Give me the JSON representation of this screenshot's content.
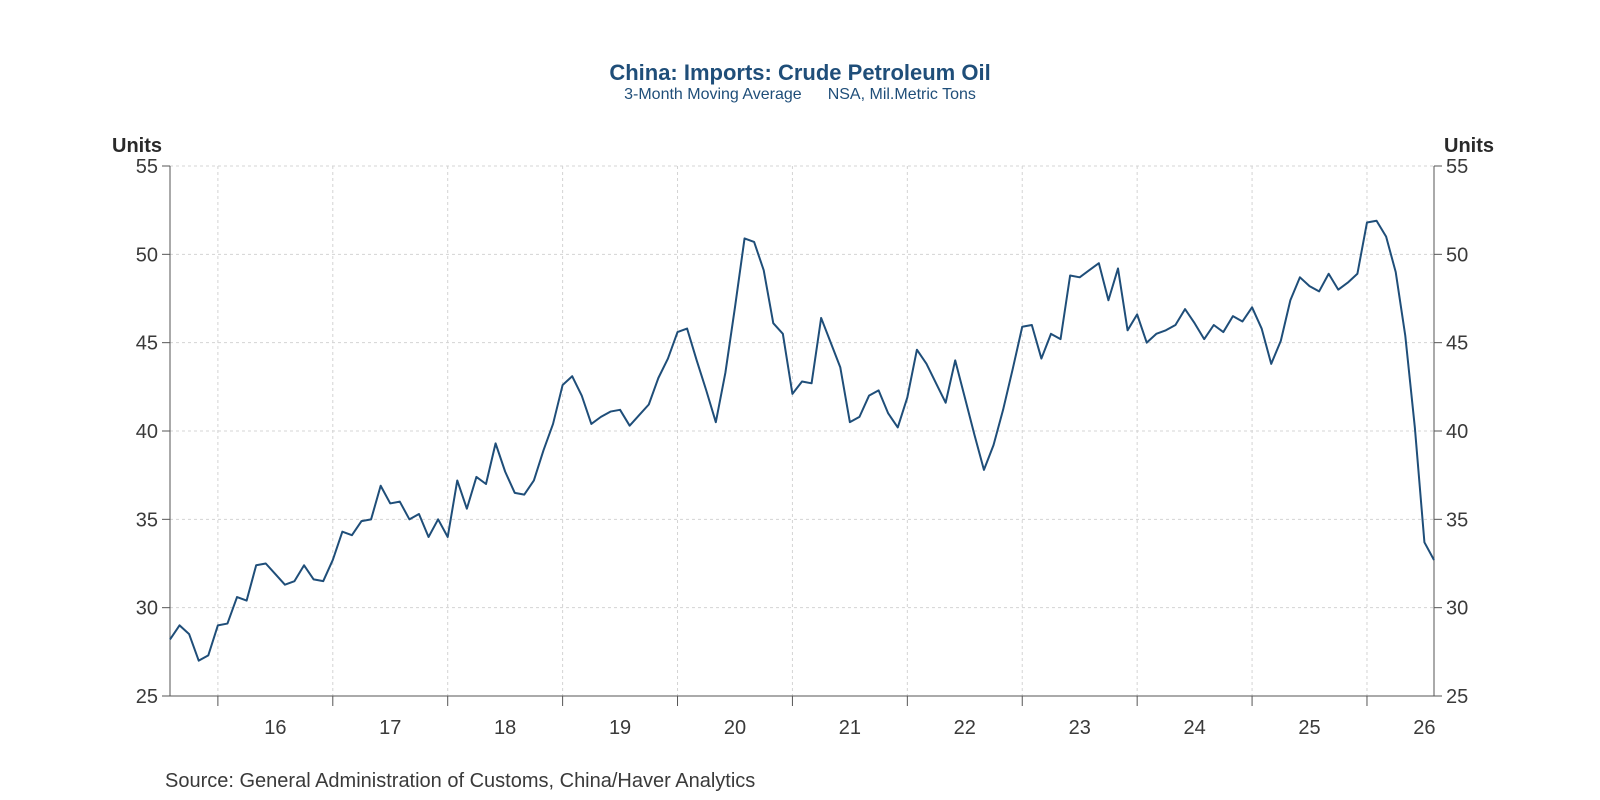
{
  "chart_data": {
    "type": "line",
    "title": "China: Imports: Crude Petroleum Oil",
    "subtitle": [
      "3-Month Moving Average",
      "NSA, Mil.Metric Tons"
    ],
    "ylabel_left": "Units",
    "ylabel_right": "Units",
    "ylim": [
      25,
      55
    ],
    "yticks": [
      25,
      30,
      35,
      40,
      45,
      50,
      55
    ],
    "x_tick_labels": [
      "16",
      "17",
      "18",
      "19",
      "20",
      "21",
      "22",
      "23",
      "24",
      "25",
      "26"
    ],
    "x_start_year": 2015.5833,
    "x_step_years": 0.083333,
    "grid": true,
    "series": [
      {
        "color": "#1f4e79",
        "values": [
          28.2,
          29.0,
          28.5,
          27.0,
          27.3,
          29.0,
          29.1,
          30.6,
          30.4,
          32.4,
          32.5,
          31.9,
          31.3,
          31.5,
          32.4,
          31.6,
          31.5,
          32.7,
          34.3,
          34.1,
          34.9,
          35.0,
          36.9,
          35.9,
          36.0,
          35.0,
          35.3,
          34.0,
          35.0,
          34.0,
          37.2,
          35.6,
          37.4,
          37.0,
          39.3,
          37.7,
          36.5,
          36.4,
          37.2,
          38.9,
          40.4,
          42.6,
          43.1,
          42.0,
          40.4,
          40.8,
          41.1,
          41.2,
          40.3,
          40.9,
          41.5,
          43.0,
          44.1,
          45.6,
          45.8,
          44.0,
          42.3,
          40.5,
          43.3,
          47.0,
          50.9,
          50.7,
          49.1,
          46.1,
          45.5,
          42.1,
          42.8,
          42.7,
          46.4,
          45.0,
          43.6,
          40.5,
          40.8,
          42.0,
          42.3,
          41.0,
          40.2,
          41.9,
          44.6,
          43.8,
          42.7,
          41.6,
          44.0,
          41.9,
          39.8,
          37.8,
          39.2,
          41.2,
          43.5,
          45.9,
          46.0,
          44.1,
          45.5,
          45.2,
          48.8,
          48.7,
          49.1,
          49.5,
          47.4,
          49.2,
          45.7,
          46.6,
          45.0,
          45.5,
          45.7,
          46.0,
          46.9,
          46.1,
          45.2,
          46.0,
          45.6,
          46.5,
          46.2,
          47.0,
          45.8,
          43.8,
          45.1,
          47.4,
          48.7,
          48.2,
          47.9,
          48.9,
          48.0,
          48.4,
          48.9,
          51.8,
          51.9,
          51.0,
          49.0,
          45.4,
          40.2,
          33.7,
          32.7
        ]
      }
    ]
  },
  "source": "Source:  General Administration of Customs, China/Haver Analytics"
}
